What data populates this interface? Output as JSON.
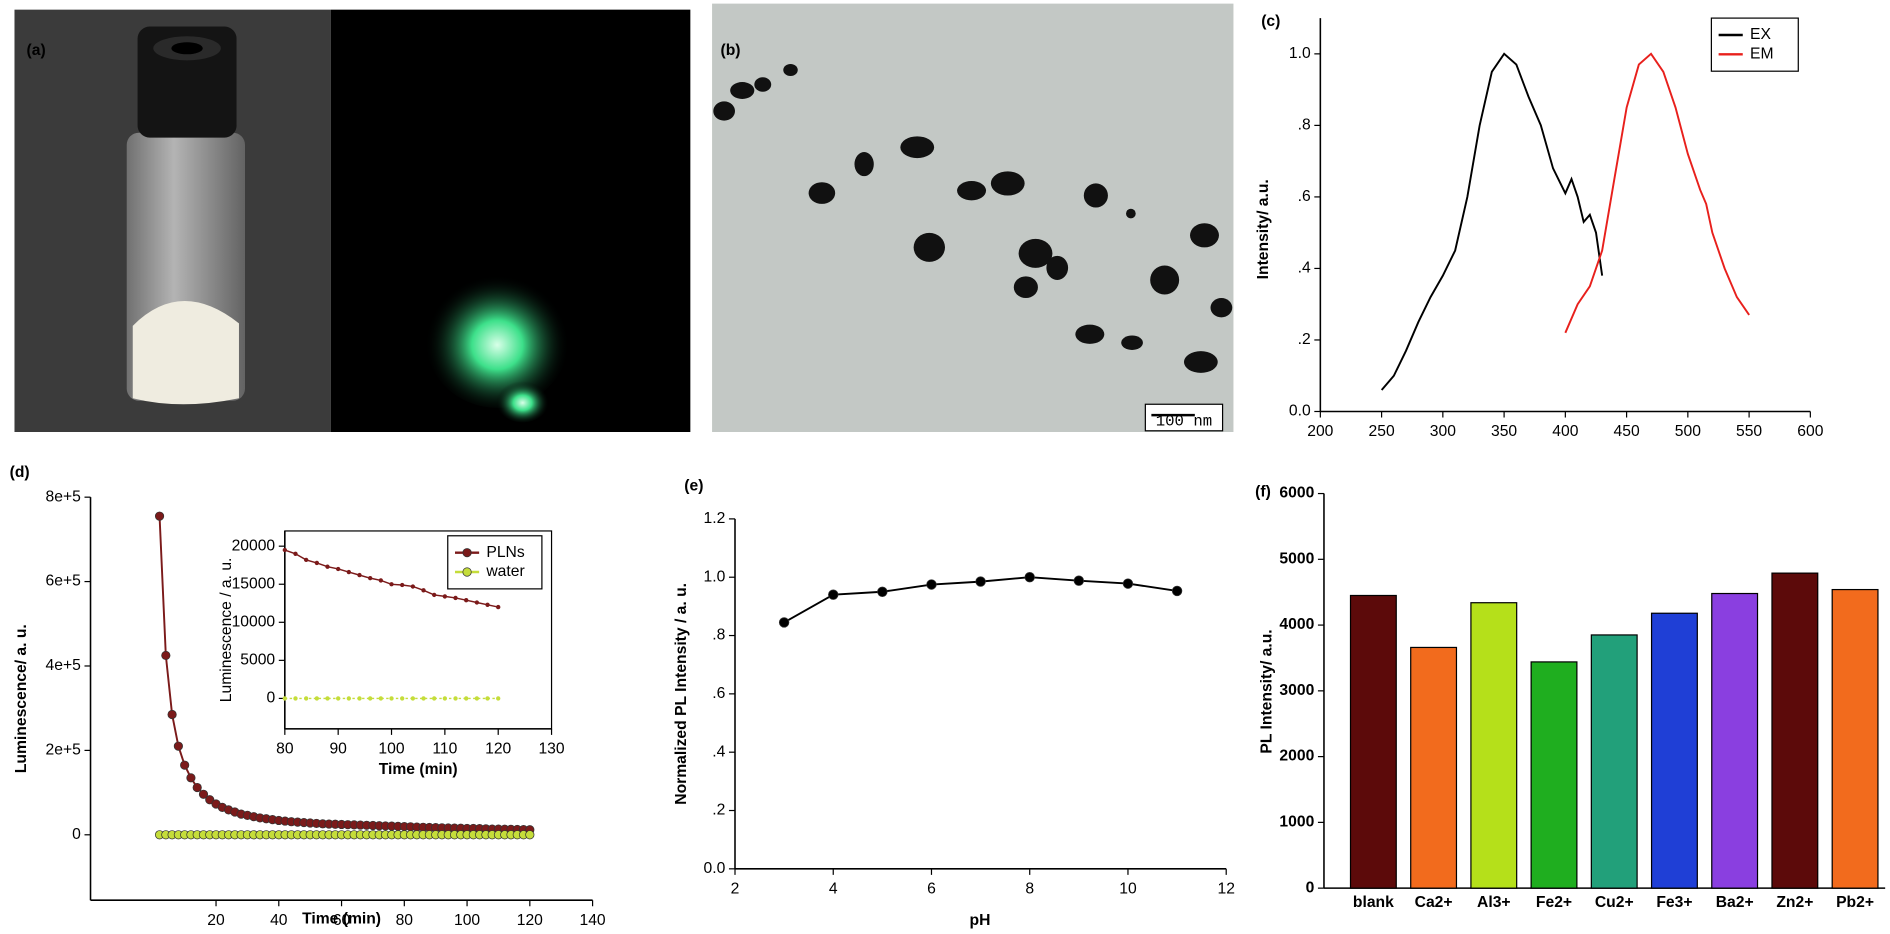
{
  "panels": {
    "a": {
      "label": "(a)"
    },
    "b": {
      "label": "(b)",
      "scale_bar": "100 nm"
    }
  },
  "chart_data": [
    {
      "type": "line",
      "panel_label": "(c)",
      "ylabel": "Intensity/ a.u.",
      "xlim": [
        200,
        600
      ],
      "xticks": [
        200,
        250,
        300,
        350,
        400,
        450,
        500,
        550,
        600
      ],
      "ylim": [
        0,
        1.1
      ],
      "yticks": [
        {
          "value": 0,
          "label": "0.0"
        },
        {
          "value": 0.2,
          "label": ".2"
        },
        {
          "value": 0.4,
          "label": ".4"
        },
        {
          "value": 0.6,
          "label": ".6"
        },
        {
          "value": 0.8,
          "label": ".8"
        },
        {
          "value": 1,
          "label": "1.0"
        }
      ],
      "legend": "upper right",
      "markers": false,
      "series": [
        {
          "name": "EX",
          "color": "#000000",
          "x": [
            250,
            260,
            270,
            280,
            290,
            300,
            310,
            320,
            330,
            340,
            350,
            360,
            370,
            380,
            390,
            400,
            405,
            410,
            415,
            420,
            425,
            430
          ],
          "values": [
            0.06,
            0.1,
            0.17,
            0.25,
            0.32,
            0.38,
            0.45,
            0.6,
            0.8,
            0.95,
            1.0,
            0.97,
            0.88,
            0.8,
            0.68,
            0.61,
            0.65,
            0.6,
            0.53,
            0.55,
            0.5,
            0.38
          ]
        },
        {
          "name": "EM",
          "color": "#e8201c",
          "x": [
            400,
            410,
            420,
            430,
            440,
            450,
            460,
            470,
            480,
            490,
            500,
            510,
            515,
            520,
            530,
            540,
            550
          ],
          "values": [
            0.22,
            0.3,
            0.35,
            0.45,
            0.65,
            0.85,
            0.97,
            1.0,
            0.95,
            0.85,
            0.72,
            0.62,
            0.58,
            0.5,
            0.4,
            0.32,
            0.27
          ]
        }
      ]
    },
    {
      "type": "line",
      "panel_label": "(d)",
      "xlabel": "Time (min)",
      "ylabel": "Luminescence/ a. u.",
      "xlim": [
        -20,
        140
      ],
      "xticks": [
        20,
        40,
        60,
        80,
        100,
        120,
        140
      ],
      "ylim": [
        -155000,
        800000
      ],
      "yticks": [
        0,
        {
          "value": 200000,
          "label": "2e+5"
        },
        {
          "value": 400000,
          "label": "4e+5"
        },
        {
          "value": 600000,
          "label": "6e+5"
        },
        {
          "value": 800000,
          "label": "8e+5"
        }
      ],
      "legend": "inset upper right",
      "markers": true,
      "x": [
        2,
        4,
        6,
        8,
        10,
        12,
        14,
        16,
        18,
        20,
        22,
        24,
        26,
        28,
        30,
        32,
        34,
        36,
        38,
        40,
        42,
        44,
        46,
        48,
        50,
        52,
        54,
        56,
        58,
        60,
        62,
        64,
        66,
        68,
        70,
        72,
        74,
        76,
        78,
        80,
        82,
        84,
        86,
        88,
        90,
        92,
        94,
        96,
        98,
        100,
        102,
        104,
        106,
        108,
        110,
        112,
        114,
        116,
        118,
        120
      ],
      "series": [
        {
          "name": "PLNs",
          "color": "#7b1a1a",
          "values": [
            755000,
            425000,
            285000,
            210000,
            165000,
            135000,
            112000,
            96000,
            83000,
            73000,
            65000,
            59000,
            54000,
            49000,
            46000,
            43000,
            40000,
            38000,
            36000,
            34000,
            32500,
            31000,
            30000,
            29000,
            28000,
            27000,
            26000,
            25500,
            25000,
            24500,
            24000,
            23500,
            23000,
            22500,
            22000,
            21500,
            21000,
            20500,
            20000,
            19500,
            19000,
            18200,
            17800,
            17300,
            17000,
            16600,
            16200,
            15800,
            15500,
            15000,
            14900,
            14700,
            14200,
            13600,
            13400,
            13200,
            12900,
            12600,
            12300,
            12000
          ]
        },
        {
          "name": "water",
          "color": "#c5dd3a",
          "values": [
            0,
            0,
            0,
            0,
            0,
            0,
            0,
            0,
            0,
            0,
            0,
            0,
            0,
            0,
            0,
            0,
            0,
            0,
            0,
            0,
            0,
            0,
            0,
            0,
            0,
            0,
            0,
            0,
            0,
            0,
            0,
            0,
            0,
            0,
            0,
            0,
            0,
            0,
            0,
            0,
            0,
            0,
            0,
            0,
            0,
            0,
            0,
            0,
            0,
            0,
            0,
            0,
            0,
            0,
            0,
            0,
            0,
            0,
            0,
            0
          ]
        }
      ],
      "inset": {
        "xlabel": "Time (min)",
        "ylabel": "Luminescence / a. u.",
        "xlim": [
          80,
          130
        ],
        "xticks": [
          80,
          90,
          100,
          110,
          120,
          130
        ],
        "ylim": [
          -4000,
          22000
        ],
        "yticks": [
          0,
          5000,
          10000,
          15000,
          20000
        ]
      }
    },
    {
      "type": "line",
      "panel_label": "(e)",
      "xlabel": "pH",
      "ylabel": "Normalized PL Intensity / a. u.",
      "xlim": [
        2,
        12
      ],
      "xticks": [
        2,
        4,
        6,
        8,
        10,
        12
      ],
      "ylim": [
        0,
        1.2
      ],
      "yticks": [
        {
          "value": 0,
          "label": "0.0"
        },
        {
          "value": 0.2,
          "label": ".2"
        },
        {
          "value": 0.4,
          "label": ".4"
        },
        {
          "value": 0.6,
          "label": ".6"
        },
        {
          "value": 0.8,
          "label": ".8"
        },
        {
          "value": 1,
          "label": "1.0"
        },
        {
          "value": 1.2,
          "label": "1.2"
        }
      ],
      "markers": true,
      "x": [
        3,
        4,
        5,
        6,
        7,
        8,
        9,
        10,
        11
      ],
      "series": [
        {
          "color": "#000000",
          "values": [
            0.845,
            0.94,
            0.95,
            0.975,
            0.985,
            1.0,
            0.988,
            0.978,
            0.953
          ]
        }
      ]
    },
    {
      "type": "bar",
      "panel_label": "(f)",
      "ylabel": "PL Intensity/ a.u.",
      "categories": [
        "blank",
        "Ca2+",
        "Al3+",
        "Fe2+",
        "Cu2+",
        "Fe3+",
        "Ba2+",
        "Zn2+",
        "Pb2+"
      ],
      "values": [
        4450,
        3660,
        4340,
        3440,
        3850,
        4180,
        4480,
        4790,
        4540
      ],
      "colors": [
        "#5c0a0a",
        "#f26b1d",
        "#b5e01a",
        "#1fae1f",
        "#22a07a",
        "#1f3fd6",
        "#8a3fe0",
        "#5c0a0a",
        "#f26b1d"
      ],
      "ylim": [
        0,
        6000
      ],
      "yticks": [
        0,
        1000,
        2000,
        3000,
        4000,
        5000,
        6000
      ]
    }
  ]
}
